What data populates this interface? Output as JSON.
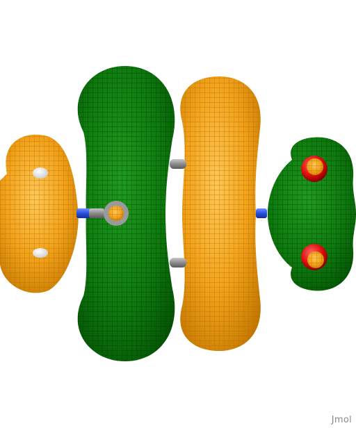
{
  "viewer": {
    "watermark": "Jmol",
    "background_color": "#ffffff",
    "colors": {
      "positive_lobe": "#f2a21a",
      "negative_lobe": "#0e7a0e",
      "bond": "#8c8c8c",
      "nitrogen": "#2a4fe0",
      "oxygen": "#e01010",
      "hydrogen": "#ffffff"
    }
  }
}
